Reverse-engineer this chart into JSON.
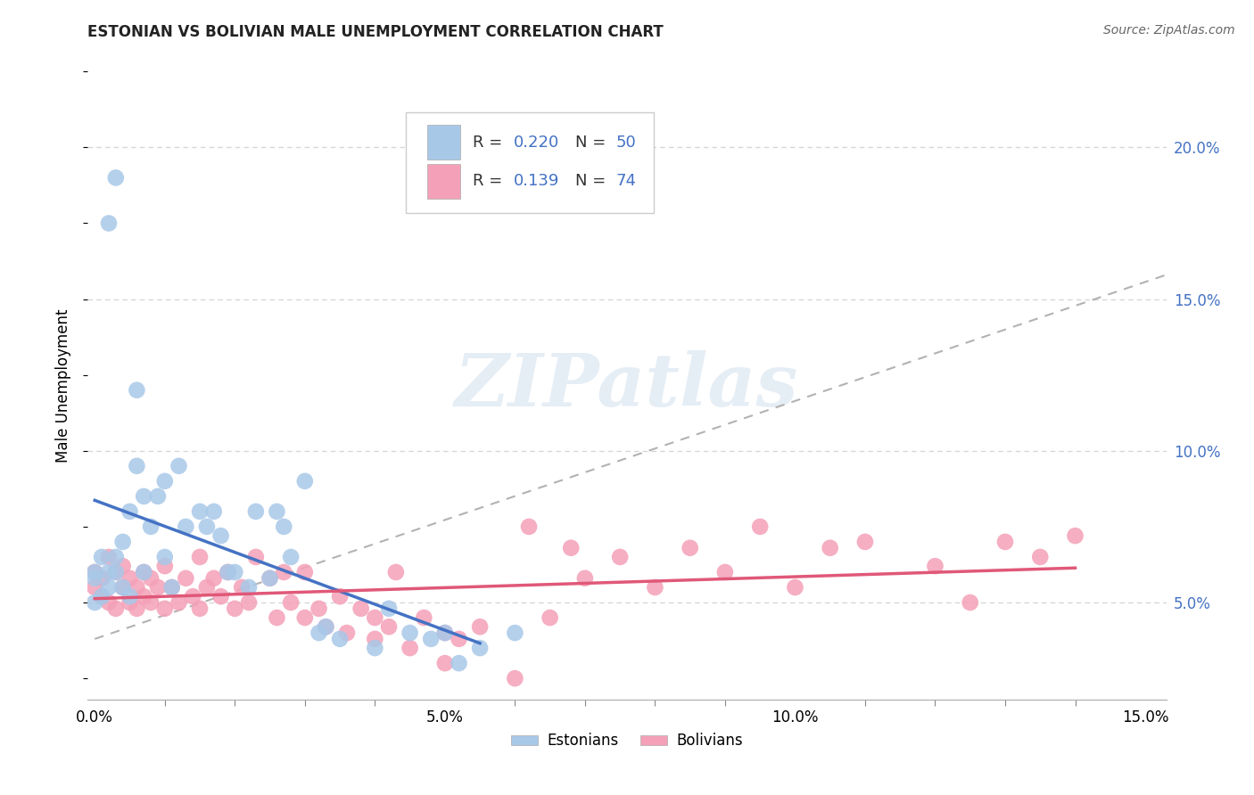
{
  "title": "ESTONIAN VS BOLIVIAN MALE UNEMPLOYMENT CORRELATION CHART",
  "source": "Source: ZipAtlas.com",
  "ylabel": "Male Unemployment",
  "xlim": [
    -0.001,
    0.153
  ],
  "ylim": [
    0.018,
    0.225
  ],
  "xticks": [
    0.0,
    0.05,
    0.1,
    0.15
  ],
  "xtick_labels": [
    "0.0%",
    "5.0%",
    "10.0%",
    "15.0%"
  ],
  "yticks_right": [
    0.05,
    0.1,
    0.15,
    0.2
  ],
  "ytick_labels_right": [
    "5.0%",
    "10.0%",
    "15.0%",
    "20.0%"
  ],
  "estonian_R": 0.22,
  "estonian_N": 50,
  "bolivian_R": 0.139,
  "bolivian_N": 74,
  "estonian_color": "#a8c8e8",
  "bolivian_color": "#f4a0b8",
  "line_estonian_color": "#4472c4",
  "line_bolivian_color": "#e05878",
  "background_color": "#ffffff",
  "grid_color": "#cccccc",
  "est_x": [
    0.0,
    0.0,
    0.0,
    0.001,
    0.001,
    0.002,
    0.002,
    0.002,
    0.003,
    0.003,
    0.003,
    0.004,
    0.004,
    0.005,
    0.005,
    0.006,
    0.006,
    0.007,
    0.007,
    0.008,
    0.009,
    0.01,
    0.01,
    0.011,
    0.012,
    0.013,
    0.015,
    0.016,
    0.017,
    0.018,
    0.019,
    0.02,
    0.022,
    0.023,
    0.025,
    0.026,
    0.027,
    0.028,
    0.03,
    0.032,
    0.033,
    0.035,
    0.04,
    0.042,
    0.045,
    0.048,
    0.05,
    0.052,
    0.055,
    0.06
  ],
  "est_y": [
    0.06,
    0.058,
    0.05,
    0.052,
    0.065,
    0.06,
    0.055,
    0.175,
    0.06,
    0.065,
    0.19,
    0.055,
    0.07,
    0.052,
    0.08,
    0.095,
    0.12,
    0.06,
    0.085,
    0.075,
    0.085,
    0.065,
    0.09,
    0.055,
    0.095,
    0.075,
    0.08,
    0.075,
    0.08,
    0.072,
    0.06,
    0.06,
    0.055,
    0.08,
    0.058,
    0.08,
    0.075,
    0.065,
    0.09,
    0.04,
    0.042,
    0.038,
    0.035,
    0.048,
    0.04,
    0.038,
    0.04,
    0.03,
    0.035,
    0.04
  ],
  "bol_x": [
    0.0,
    0.0,
    0.001,
    0.001,
    0.002,
    0.002,
    0.003,
    0.003,
    0.004,
    0.004,
    0.005,
    0.005,
    0.006,
    0.006,
    0.007,
    0.007,
    0.008,
    0.008,
    0.009,
    0.01,
    0.01,
    0.011,
    0.012,
    0.013,
    0.014,
    0.015,
    0.015,
    0.016,
    0.017,
    0.018,
    0.019,
    0.02,
    0.021,
    0.022,
    0.023,
    0.025,
    0.026,
    0.027,
    0.028,
    0.03,
    0.03,
    0.032,
    0.033,
    0.035,
    0.036,
    0.038,
    0.04,
    0.04,
    0.042,
    0.043,
    0.045,
    0.047,
    0.05,
    0.05,
    0.052,
    0.055,
    0.06,
    0.062,
    0.065,
    0.068,
    0.07,
    0.075,
    0.08,
    0.085,
    0.09,
    0.095,
    0.1,
    0.105,
    0.11,
    0.12,
    0.125,
    0.13,
    0.135,
    0.14
  ],
  "bol_y": [
    0.055,
    0.06,
    0.052,
    0.058,
    0.05,
    0.065,
    0.048,
    0.06,
    0.055,
    0.062,
    0.05,
    0.058,
    0.048,
    0.055,
    0.052,
    0.06,
    0.05,
    0.058,
    0.055,
    0.048,
    0.062,
    0.055,
    0.05,
    0.058,
    0.052,
    0.048,
    0.065,
    0.055,
    0.058,
    0.052,
    0.06,
    0.048,
    0.055,
    0.05,
    0.065,
    0.058,
    0.045,
    0.06,
    0.05,
    0.045,
    0.06,
    0.048,
    0.042,
    0.052,
    0.04,
    0.048,
    0.045,
    0.038,
    0.042,
    0.06,
    0.035,
    0.045,
    0.04,
    0.03,
    0.038,
    0.042,
    0.025,
    0.075,
    0.045,
    0.068,
    0.058,
    0.065,
    0.055,
    0.068,
    0.06,
    0.075,
    0.055,
    0.068,
    0.07,
    0.062,
    0.05,
    0.07,
    0.065,
    0.072
  ]
}
